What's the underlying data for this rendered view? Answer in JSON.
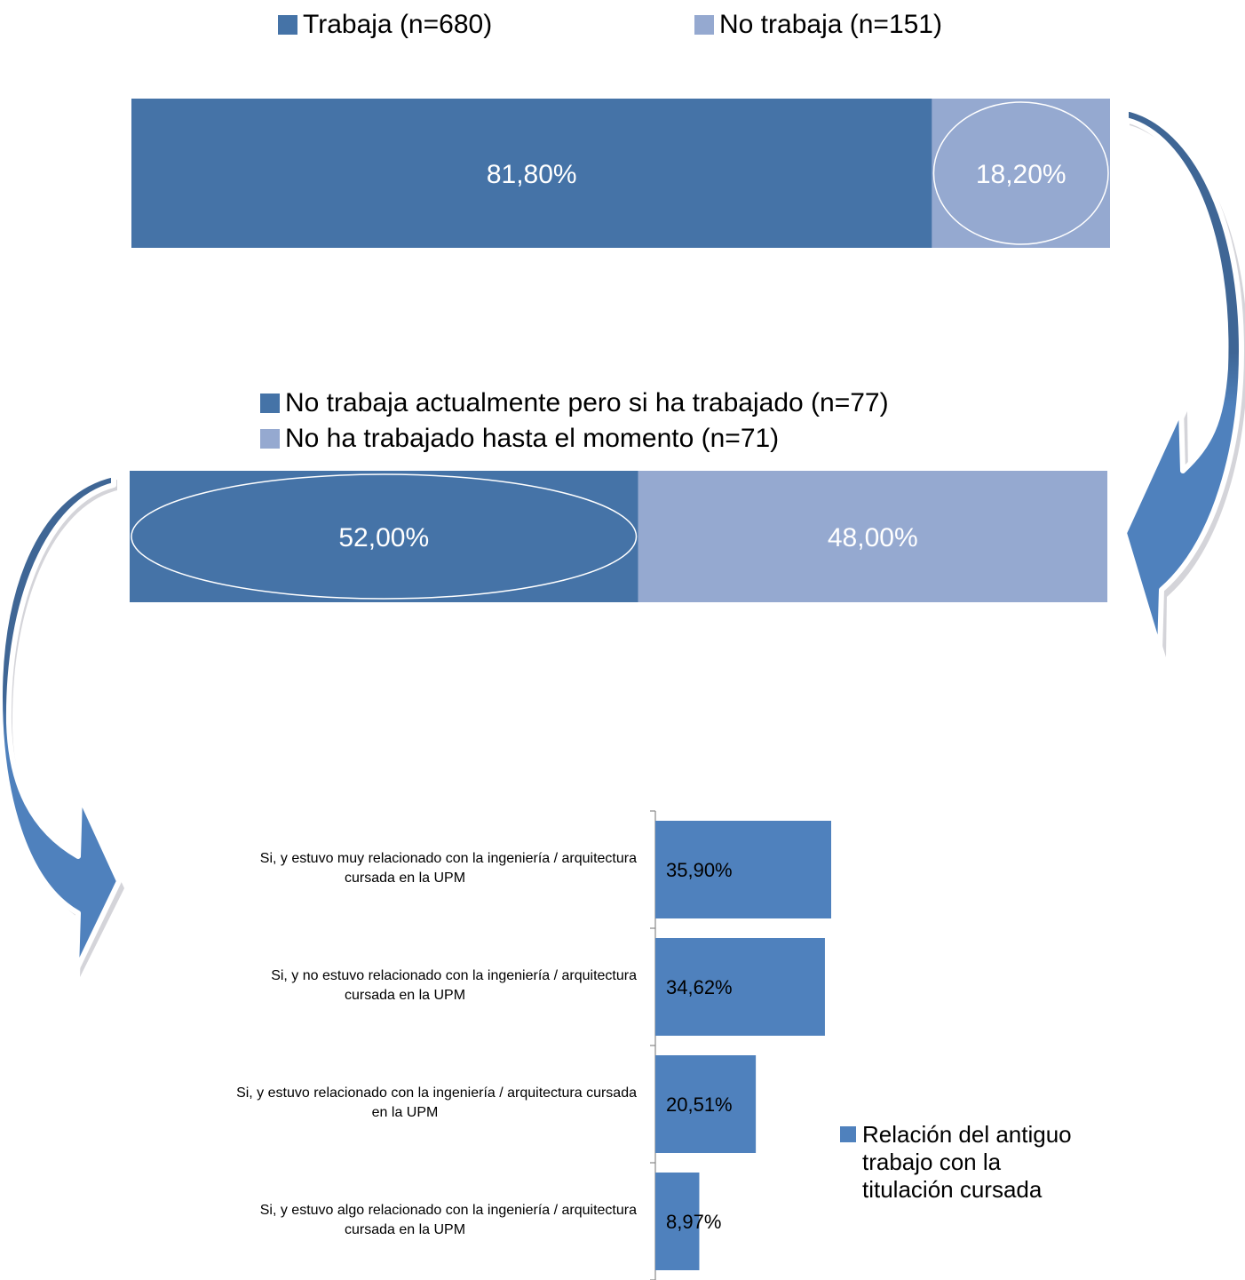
{
  "colors": {
    "dark_blue": "#4573A7",
    "light_blue": "#95A9D0",
    "bar3_blue": "#4F81BD",
    "arrow_dark": "#3F6695",
    "arrow_light": "#4F81BD"
  },
  "chart_data": [
    {
      "type": "bar",
      "stacked": "percent",
      "orientation": "horizontal",
      "series": [
        {
          "name": "Trabaja (n=680)",
          "values": [
            81.8
          ],
          "label": "81,80%",
          "color": "#4573A7"
        },
        {
          "name": "No trabaja (n=151)",
          "values": [
            18.2
          ],
          "label": "18,20%",
          "color": "#95A9D0"
        }
      ],
      "highlighted_series": "No trabaja (n=151)",
      "legend": "top"
    },
    {
      "type": "bar",
      "stacked": "percent",
      "orientation": "horizontal",
      "series": [
        {
          "name": "No trabaja actualmente pero si ha trabajado (n=77)",
          "values": [
            52.0
          ],
          "label": "52,00%",
          "color": "#4573A7"
        },
        {
          "name": "No ha trabajado hasta el momento (n=71)",
          "values": [
            48.0
          ],
          "label": "48,00%",
          "color": "#95A9D0"
        }
      ],
      "highlighted_series": "No trabaja actualmente pero si ha trabajado (n=77)",
      "legend": "top"
    },
    {
      "type": "bar",
      "orientation": "horizontal",
      "categories": [
        [
          "Si, y  estuvo muy relacionado con la ingeniería / arquitectura",
          "cursada en la UPM"
        ],
        [
          "Si, y  no estuvo relacionado con la ingeniería / arquitectura",
          "cursada en la UPM"
        ],
        [
          "Si, y  estuvo relacionado con la ingeniería / arquitectura cursada",
          "en la UPM"
        ],
        [
          "Si, y  estuvo algo relacionado con la ingeniería / arquitectura",
          "cursada en la UPM"
        ]
      ],
      "series": [
        {
          "name": "Relación del antiguo trabajo con la titulación cursada",
          "name_lines": [
            "Relación del antiguo",
            "trabajo con la",
            "titulación cursada"
          ],
          "values": [
            35.9,
            34.62,
            20.51,
            8.97
          ],
          "labels": [
            "35,90%",
            "34,62%",
            "20,51%",
            "8,97%"
          ],
          "color": "#4F81BD"
        }
      ],
      "xlim": [
        0,
        100
      ],
      "legend": "right"
    }
  ]
}
